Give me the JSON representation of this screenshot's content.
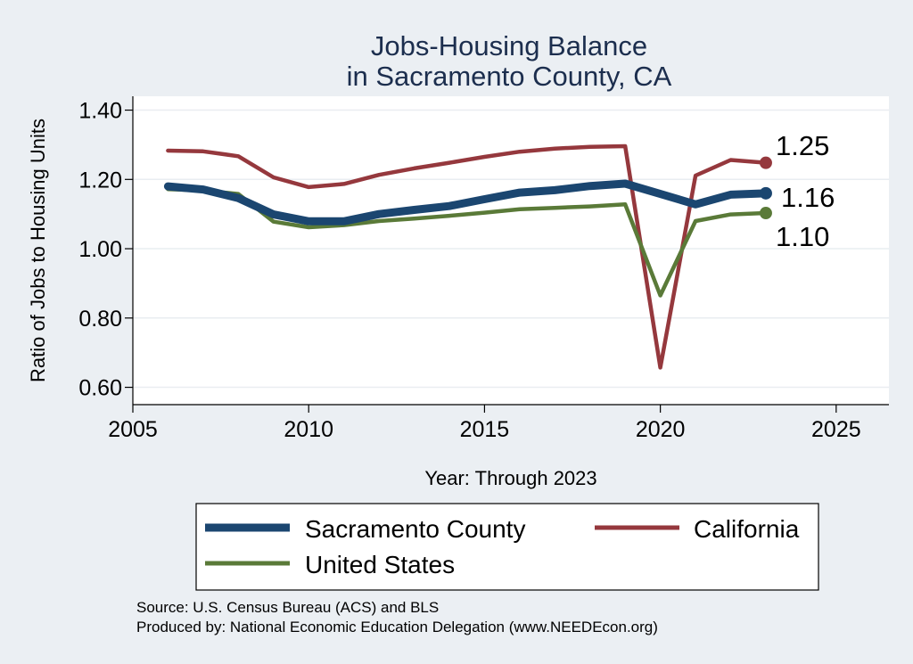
{
  "chart_data": {
    "type": "line",
    "title": [
      "Jobs-Housing Balance",
      "in Sacramento County, CA"
    ],
    "xlabel": "Year: Through 2023",
    "ylabel": "Ratio of Jobs to Housing Units",
    "xlim": [
      2005,
      2026.5
    ],
    "ylim": [
      0.55,
      1.44
    ],
    "xticks": [
      2005,
      2010,
      2015,
      2020,
      2025
    ],
    "yticks": [
      0.6,
      0.8,
      1.0,
      1.2,
      1.4
    ],
    "ytick_labels": [
      "0.60",
      "0.80",
      "1.00",
      "1.20",
      "1.40"
    ],
    "grid": true,
    "x": [
      2006,
      2007,
      2008,
      2009,
      2010,
      2011,
      2012,
      2013,
      2014,
      2015,
      2016,
      2017,
      2018,
      2019,
      2020,
      2021,
      2022,
      2023
    ],
    "series": [
      {
        "name": "California",
        "color": "#95383d",
        "values": [
          1.283,
          1.281,
          1.267,
          1.206,
          1.178,
          1.187,
          1.213,
          1.232,
          1.248,
          1.265,
          1.28,
          1.289,
          1.294,
          1.296,
          0.657,
          1.211,
          1.256,
          1.248
        ],
        "end_label": "1.25"
      },
      {
        "name": "United States",
        "color": "#5a7a38",
        "values": [
          1.172,
          1.168,
          1.158,
          1.078,
          1.062,
          1.068,
          1.08,
          1.087,
          1.095,
          1.104,
          1.114,
          1.118,
          1.122,
          1.128,
          0.865,
          1.08,
          1.099,
          1.103
        ],
        "end_label": "1.10"
      },
      {
        "name": "Sacramento County",
        "color": "#1b4670",
        "values": [
          1.18,
          1.171,
          1.146,
          1.099,
          1.079,
          1.079,
          1.1,
          1.112,
          1.123,
          1.143,
          1.162,
          1.169,
          1.181,
          1.188,
          1.158,
          1.128,
          1.156,
          1.16
        ],
        "end_label": "1.16"
      }
    ],
    "legend": {
      "placement": "bottom",
      "items": [
        {
          "label": "Sacramento County",
          "color": "#1b4670"
        },
        {
          "label": "California",
          "color": "#95383d"
        },
        {
          "label": "United States",
          "color": "#5a7a38"
        }
      ]
    },
    "source_lines": [
      "Source: U.S. Census Bureau (ACS) and BLS",
      "Produced by: National Economic Education Delegation (www.NEEDEcon.org)"
    ]
  }
}
